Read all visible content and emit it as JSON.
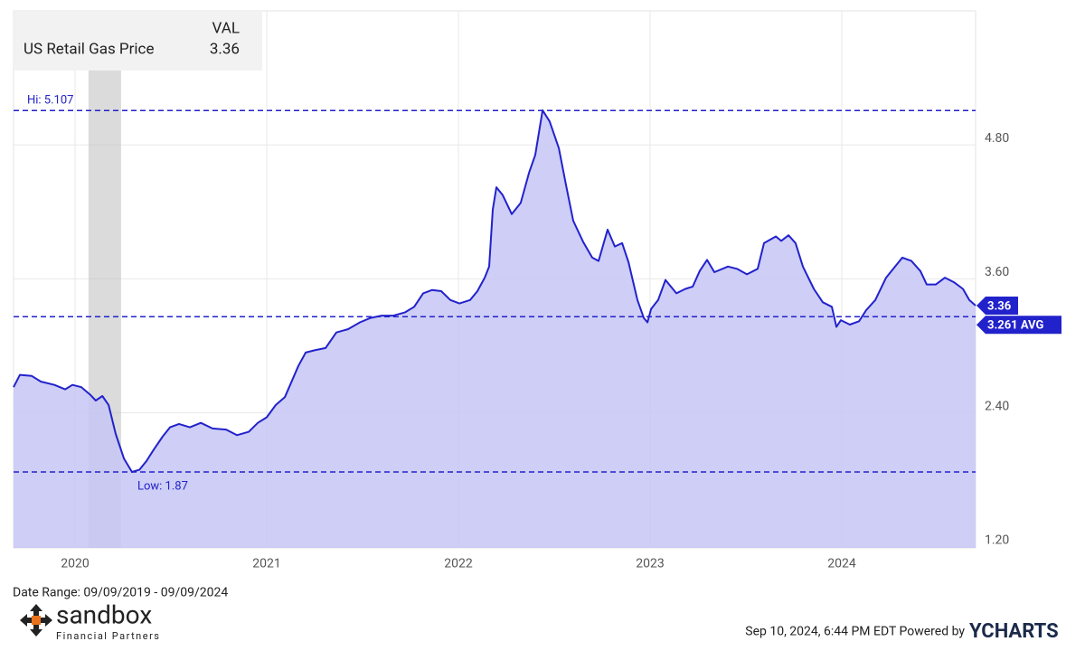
{
  "chart_data": {
    "type": "area",
    "legend": {
      "header": "VAL"
    },
    "x": [
      2019.679,
      2019.712,
      2019.774,
      2019.821,
      2019.892,
      2019.948,
      2019.986,
      2020.033,
      2020.08,
      2020.108,
      2020.142,
      2020.175,
      2020.212,
      2020.255,
      2020.297,
      2020.335,
      2020.373,
      2020.41,
      2020.458,
      2020.495,
      2020.542,
      2020.599,
      2020.656,
      2020.717,
      2020.788,
      2020.844,
      2020.906,
      2020.953,
      2021.0,
      2021.047,
      2021.094,
      2021.127,
      2021.165,
      2021.203,
      2021.25,
      2021.307,
      2021.363,
      2021.425,
      2021.486,
      2021.542,
      2021.599,
      2021.66,
      2021.722,
      2021.769,
      2021.816,
      2021.863,
      2021.91,
      2021.958,
      2022.005,
      2022.061,
      2022.099,
      2022.137,
      2022.16,
      2022.179,
      2022.198,
      2022.231,
      2022.278,
      2022.325,
      2022.368,
      2022.401,
      2022.439,
      2022.476,
      2022.524,
      2022.561,
      2022.599,
      2022.651,
      2022.698,
      2022.731,
      2022.778,
      2022.816,
      2022.854,
      2022.887,
      2022.934,
      2022.967,
      2022.986,
      2023.005,
      2023.042,
      2023.08,
      2023.137,
      2023.184,
      2023.222,
      2023.259,
      2023.297,
      2023.335,
      2023.406,
      2023.453,
      2023.505,
      2023.561,
      2023.594,
      2023.656,
      2023.684,
      2023.722,
      2023.759,
      2023.797,
      2023.854,
      2023.901,
      2023.948,
      2023.972,
      2023.995,
      2024.042,
      2024.09,
      2024.127,
      2024.175,
      2024.231,
      2024.278,
      2024.316,
      2024.363,
      2024.41,
      2024.443,
      2024.491,
      2024.538,
      2024.585,
      2024.632,
      2024.665,
      2024.698
    ],
    "series": [
      {
        "name": "US Retail Gas Price",
        "color": "#2222cc",
        "fill": "#c6c6f5",
        "values": [
          2.63,
          2.74,
          2.73,
          2.68,
          2.65,
          2.61,
          2.65,
          2.63,
          2.56,
          2.51,
          2.55,
          2.47,
          2.21,
          1.99,
          1.87,
          1.89,
          1.97,
          2.07,
          2.19,
          2.27,
          2.3,
          2.27,
          2.31,
          2.26,
          2.25,
          2.2,
          2.23,
          2.31,
          2.36,
          2.47,
          2.54,
          2.67,
          2.82,
          2.94,
          2.96,
          2.98,
          3.12,
          3.15,
          3.21,
          3.25,
          3.27,
          3.27,
          3.3,
          3.35,
          3.47,
          3.5,
          3.49,
          3.41,
          3.38,
          3.41,
          3.49,
          3.61,
          3.71,
          4.22,
          4.42,
          4.35,
          4.18,
          4.28,
          4.55,
          4.71,
          5.11,
          5.01,
          4.77,
          4.44,
          4.12,
          3.93,
          3.79,
          3.76,
          4.04,
          3.89,
          3.92,
          3.75,
          3.41,
          3.25,
          3.21,
          3.33,
          3.41,
          3.59,
          3.47,
          3.51,
          3.53,
          3.67,
          3.77,
          3.66,
          3.71,
          3.69,
          3.64,
          3.69,
          3.92,
          3.98,
          3.94,
          3.99,
          3.92,
          3.71,
          3.51,
          3.39,
          3.35,
          3.17,
          3.23,
          3.19,
          3.22,
          3.32,
          3.41,
          3.61,
          3.71,
          3.79,
          3.76,
          3.67,
          3.55,
          3.55,
          3.61,
          3.57,
          3.51,
          3.41,
          3.36
        ]
      }
    ],
    "xlim": [
      2019.679,
      2024.698
    ],
    "xticks": [
      2020,
      2021,
      2022,
      2023,
      2024
    ],
    "ylim": [
      1.19,
      6.0
    ],
    "yticks": [
      {
        "value": 1.2,
        "label": "1.20"
      },
      {
        "value": 2.4,
        "label": "2.40"
      },
      {
        "value": 3.6,
        "label": "3.60"
      },
      {
        "value": 4.8,
        "label": "4.80"
      }
    ],
    "grid": true,
    "shaded_range": [
      2020.07,
      2020.24
    ],
    "reference_lines": [
      {
        "label": "Hi: 5.107",
        "value": 5.107,
        "style": "dashed",
        "label_position": "above"
      },
      {
        "label": "Low: 1.87",
        "value": 1.87,
        "style": "dashed",
        "label_position": "below"
      },
      {
        "label": "3.261 AVG",
        "value": 3.261,
        "style": "dashed",
        "label_position": "tag"
      }
    ],
    "footer": {
      "date_range": "Date Range: 09/09/2019 - 09/09/2024",
      "logo_name": "sandbox",
      "logo_sub": "Financial Partners",
      "timestamp": "Sep 10, 2024, 6:44 PM EDT Powered by",
      "brand": "YCHARTS"
    }
  }
}
